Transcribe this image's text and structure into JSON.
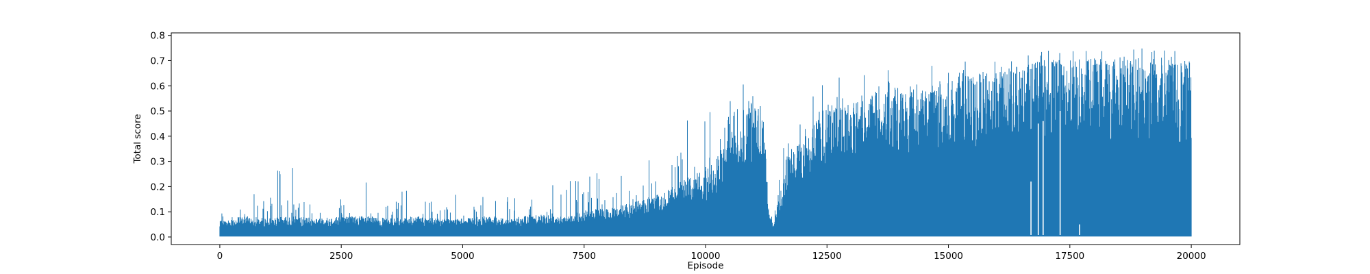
{
  "chart_data": {
    "type": "line",
    "title": "",
    "xlabel": "Episode",
    "ylabel": "Total score",
    "xlim": [
      -1000,
      21000
    ],
    "ylim": [
      -0.03,
      0.81
    ],
    "x_ticks": [
      0,
      2500,
      5000,
      7500,
      10000,
      12500,
      15000,
      17500,
      20000
    ],
    "x_tick_labels": [
      "0",
      "2500",
      "5000",
      "7500",
      "10000",
      "12500",
      "15000",
      "17500",
      "20000"
    ],
    "y_ticks": [
      0.0,
      0.1,
      0.2,
      0.3,
      0.4,
      0.5,
      0.6,
      0.7,
      0.8
    ],
    "y_tick_labels": [
      "0.0",
      "0.1",
      "0.2",
      "0.3",
      "0.4",
      "0.5",
      "0.6",
      "0.7",
      "0.8"
    ],
    "grid": false,
    "legend": "none",
    "series": [
      {
        "color": "#1f77b4",
        "x": [
          0,
          500,
          1000,
          1500,
          2000,
          2500,
          3000,
          3500,
          4000,
          4500,
          5000,
          5500,
          6000,
          6500,
          7000,
          7500,
          8000,
          8500,
          9000,
          9500,
          10000,
          10500,
          11000,
          11200,
          11300,
          11400,
          11500,
          11700,
          12000,
          12500,
          13000,
          13500,
          14000,
          14500,
          15000,
          15500,
          16000,
          16500,
          17000,
          17500,
          18000,
          18500,
          19000,
          19500,
          20000
        ],
        "y_min": [
          0.0,
          0.0,
          0.0,
          0.0,
          0.0,
          0.0,
          0.0,
          0.0,
          0.0,
          0.0,
          0.0,
          0.0,
          0.0,
          0.0,
          0.0,
          0.0,
          0.0,
          0.0,
          0.0,
          0.0,
          0.0,
          0.0,
          0.0,
          0.0,
          0.0,
          0.0,
          0.0,
          0.0,
          0.0,
          0.0,
          0.0,
          0.0,
          0.0,
          0.0,
          0.0,
          0.0,
          0.0,
          0.0,
          0.0,
          0.0,
          0.0,
          0.0,
          0.0,
          0.0,
          0.0
        ],
        "y_typical": [
          0.06,
          0.08,
          0.07,
          0.08,
          0.07,
          0.08,
          0.08,
          0.07,
          0.08,
          0.07,
          0.07,
          0.08,
          0.07,
          0.09,
          0.08,
          0.1,
          0.11,
          0.13,
          0.16,
          0.21,
          0.25,
          0.38,
          0.5,
          0.45,
          0.1,
          0.05,
          0.15,
          0.3,
          0.38,
          0.48,
          0.52,
          0.55,
          0.58,
          0.56,
          0.6,
          0.62,
          0.63,
          0.65,
          0.67,
          0.67,
          0.68,
          0.68,
          0.68,
          0.68,
          0.66
        ],
        "y_max": [
          0.1,
          0.17,
          0.25,
          0.29,
          0.2,
          0.23,
          0.22,
          0.22,
          0.2,
          0.21,
          0.2,
          0.17,
          0.16,
          0.26,
          0.2,
          0.26,
          0.25,
          0.3,
          0.33,
          0.47,
          0.5,
          0.6,
          0.63,
          0.6,
          0.28,
          0.15,
          0.3,
          0.45,
          0.55,
          0.62,
          0.66,
          0.66,
          0.68,
          0.68,
          0.71,
          0.72,
          0.72,
          0.72,
          0.74,
          0.74,
          0.74,
          0.76,
          0.75,
          0.76,
          0.73
        ]
      }
    ],
    "gaps": [
      {
        "x": 16700,
        "y_low": 0.0,
        "y_high": 0.22
      },
      {
        "x": 16850,
        "y_low": 0.0,
        "y_high": 0.45
      },
      {
        "x": 16950,
        "y_low": 0.0,
        "y_high": 0.46
      },
      {
        "x": 17300,
        "y_low": 0.0,
        "y_high": 0.5
      },
      {
        "x": 17700,
        "y_low": 0.0,
        "y_high": 0.05
      }
    ]
  }
}
